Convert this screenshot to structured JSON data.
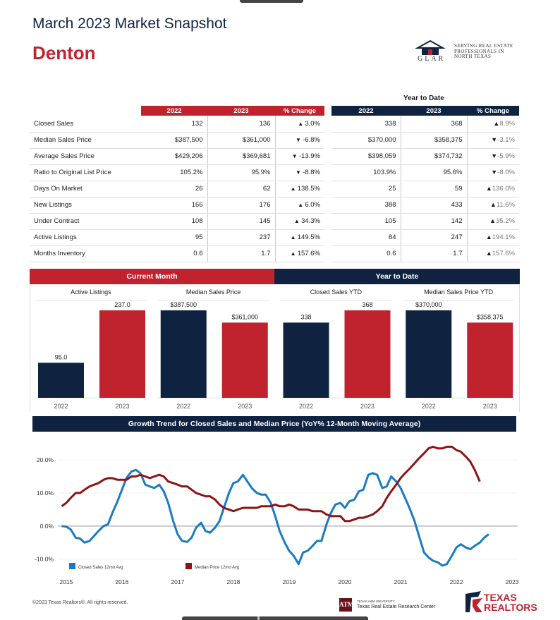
{
  "header": {
    "title": "March 2023 Market Snapshot",
    "city": "Denton",
    "glar": {
      "lines": [
        "Serving Real Estate",
        "Professionals in",
        "North Texas"
      ],
      "acronym": "GLAR",
      "colors": {
        "roof": "#0f2341",
        "accent": "#c0222e"
      }
    }
  },
  "table": {
    "ytd_heading": "Year to Date",
    "current_headers": [
      "2022",
      "2023",
      "% Change"
    ],
    "ytd_headers": [
      "2022",
      "2023",
      "% Change"
    ],
    "rows": [
      {
        "label": "Closed Sales",
        "c2022": "132",
        "c2023": "136",
        "cchg": "3.0%",
        "cdir": "up",
        "y2022": "338",
        "y2023": "368",
        "ychg": "8.9%",
        "ydir": "up"
      },
      {
        "label": "Median Sales Price",
        "c2022": "$387,500",
        "c2023": "$361,000",
        "cchg": "-6.8%",
        "cdir": "down",
        "y2022": "$370,000",
        "y2023": "$358,375",
        "ychg": "-3.1%",
        "ydir": "down"
      },
      {
        "label": "Average Sales Price",
        "c2022": "$429,206",
        "c2023": "$369,681",
        "cchg": "-13.9%",
        "cdir": "down",
        "y2022": "$398,059",
        "y2023": "$374,732",
        "ychg": "-5.9%",
        "ydir": "down"
      },
      {
        "label": "Ratio to Original List Price",
        "c2022": "105.2%",
        "c2023": "95.9%",
        "cchg": "-8.8%",
        "cdir": "down",
        "y2022": "103.9%",
        "y2023": "95.6%",
        "ychg": "-8.0%",
        "ydir": "down"
      },
      {
        "label": "Days On Market",
        "c2022": "26",
        "c2023": "62",
        "cchg": "138.5%",
        "cdir": "up",
        "y2022": "25",
        "y2023": "59",
        "ychg": "136.0%",
        "ydir": "up"
      },
      {
        "label": "New Listings",
        "c2022": "166",
        "c2023": "176",
        "cchg": "6.0%",
        "cdir": "up",
        "y2022": "388",
        "y2023": "433",
        "ychg": "11.6%",
        "ydir": "up"
      },
      {
        "label": "Under Contract",
        "c2022": "108",
        "c2023": "145",
        "cchg": "34.3%",
        "cdir": "up",
        "y2022": "105",
        "y2023": "142",
        "ychg": "35.2%",
        "ydir": "up"
      },
      {
        "label": "Active Listings",
        "c2022": "95",
        "c2023": "237",
        "cchg": "149.5%",
        "cdir": "up",
        "y2022": "84",
        "y2023": "247",
        "ychg": "194.1%",
        "ydir": "up"
      },
      {
        "label": "Months Inventory",
        "c2022": "0.6",
        "c2023": "1.7",
        "cchg": "157.6%",
        "cdir": "up",
        "y2022": "0.6",
        "y2023": "1.7",
        "ychg": "157.6%",
        "ydir": "up"
      }
    ],
    "colors": {
      "current": "#c0222e",
      "ytd": "#0f2341"
    }
  },
  "bands": {
    "current": "Current Month",
    "ytd": "Year to Date"
  },
  "chart_data": [
    {
      "type": "bar",
      "title": "Active Listings",
      "categories": [
        "2022",
        "2023"
      ],
      "values": [
        95.0,
        237.0
      ],
      "labels": [
        "95.0",
        "237.0"
      ],
      "colors": [
        "#0f2341",
        "#c0222e"
      ]
    },
    {
      "type": "bar",
      "title": "Median Sales Price",
      "categories": [
        "2022",
        "2023"
      ],
      "values": [
        387500,
        361000
      ],
      "labels": [
        "$387,500",
        "$361,000"
      ],
      "colors": [
        "#0f2341",
        "#c0222e"
      ]
    },
    {
      "type": "bar",
      "title": "Closed Sales YTD",
      "categories": [
        "2022",
        "2023"
      ],
      "values": [
        338,
        368
      ],
      "labels": [
        "338",
        "368"
      ],
      "colors": [
        "#0f2341",
        "#c0222e"
      ]
    },
    {
      "type": "bar",
      "title": "Median Sales Price YTD",
      "categories": [
        "2022",
        "2023"
      ],
      "values": [
        370000,
        358375
      ],
      "labels": [
        "$370,000",
        "$358,375"
      ],
      "colors": [
        "#0f2341",
        "#c0222e"
      ]
    },
    {
      "type": "line",
      "title": "Growth Trend for Closed Sales and Median Price (YoY% 12-Month Moving Average)",
      "xlim": [
        2014.85,
        2023.1
      ],
      "ylim": [
        -12,
        26
      ],
      "yticks": [
        20,
        10,
        0,
        -10
      ],
      "ytick_labels": [
        "20.0%",
        "10.0%",
        "0.0%",
        "-10.0%"
      ],
      "xticks": [
        "2015",
        "2016",
        "2017",
        "2018",
        "2019",
        "2020",
        "2021",
        "2022",
        "2023"
      ],
      "series": [
        {
          "name": "Closed Sales 12mo Avg",
          "color": "#1a7ac4",
          "points": [
            [
              2014.92,
              0.0
            ],
            [
              2015.0,
              -0.2
            ],
            [
              2015.08,
              -1.0
            ],
            [
              2015.17,
              -3.5
            ],
            [
              2015.25,
              -3.8
            ],
            [
              2015.33,
              -5.0
            ],
            [
              2015.42,
              -4.5
            ],
            [
              2015.5,
              -3.0
            ],
            [
              2015.58,
              -1.5
            ],
            [
              2015.67,
              0.0
            ],
            [
              2015.75,
              0.5
            ],
            [
              2015.83,
              4.0
            ],
            [
              2015.92,
              7.5
            ],
            [
              2016.0,
              11.0
            ],
            [
              2016.08,
              14.5
            ],
            [
              2016.17,
              16.5
            ],
            [
              2016.25,
              17.0
            ],
            [
              2016.33,
              16.0
            ],
            [
              2016.42,
              12.5
            ],
            [
              2016.5,
              12.0
            ],
            [
              2016.58,
              11.5
            ],
            [
              2016.67,
              12.5
            ],
            [
              2016.75,
              10.5
            ],
            [
              2016.83,
              7.0
            ],
            [
              2016.92,
              1.5
            ],
            [
              2017.0,
              -2.5
            ],
            [
              2017.08,
              -4.5
            ],
            [
              2017.17,
              -4.8
            ],
            [
              2017.25,
              -3.5
            ],
            [
              2017.33,
              -0.5
            ],
            [
              2017.42,
              1.0
            ],
            [
              2017.5,
              -1.5
            ],
            [
              2017.58,
              -2.0
            ],
            [
              2017.67,
              -0.5
            ],
            [
              2017.75,
              1.5
            ],
            [
              2017.83,
              5.5
            ],
            [
              2017.92,
              10.0
            ],
            [
              2018.0,
              13.0
            ],
            [
              2018.08,
              13.5
            ],
            [
              2018.17,
              15.5
            ],
            [
              2018.25,
              13.5
            ],
            [
              2018.33,
              11.5
            ],
            [
              2018.42,
              10.0
            ],
            [
              2018.5,
              9.5
            ],
            [
              2018.58,
              9.5
            ],
            [
              2018.67,
              7.0
            ],
            [
              2018.75,
              3.0
            ],
            [
              2018.83,
              -1.5
            ],
            [
              2018.92,
              -5.0
            ],
            [
              2019.0,
              -7.5
            ],
            [
              2019.08,
              -9.0
            ],
            [
              2019.17,
              -11.5
            ],
            [
              2019.25,
              -8.0
            ],
            [
              2019.33,
              -7.5
            ],
            [
              2019.42,
              -6.0
            ],
            [
              2019.5,
              -4.5
            ],
            [
              2019.58,
              -4.5
            ],
            [
              2019.67,
              0.5
            ],
            [
              2019.75,
              4.0
            ],
            [
              2019.83,
              6.5
            ],
            [
              2019.92,
              7.0
            ],
            [
              2020.0,
              5.5
            ],
            [
              2020.08,
              7.5
            ],
            [
              2020.17,
              8.0
            ],
            [
              2020.25,
              10.5
            ],
            [
              2020.33,
              11.0
            ],
            [
              2020.42,
              15.5
            ],
            [
              2020.5,
              16.0
            ],
            [
              2020.58,
              15.5
            ],
            [
              2020.67,
              11.5
            ],
            [
              2020.75,
              12.0
            ],
            [
              2020.83,
              15.0
            ],
            [
              2020.92,
              13.5
            ],
            [
              2021.0,
              11.5
            ],
            [
              2021.08,
              8.5
            ],
            [
              2021.17,
              5.0
            ],
            [
              2021.25,
              1.5
            ],
            [
              2021.33,
              -3.0
            ],
            [
              2021.42,
              -8.0
            ],
            [
              2021.5,
              -9.5
            ],
            [
              2021.58,
              -10.5
            ],
            [
              2021.67,
              -11.0
            ],
            [
              2021.75,
              -12.0
            ],
            [
              2021.83,
              -11.5
            ],
            [
              2021.92,
              -9.0
            ],
            [
              2022.0,
              -6.5
            ],
            [
              2022.08,
              -5.5
            ],
            [
              2022.17,
              -6.5
            ],
            [
              2022.25,
              -7.0
            ],
            [
              2022.33,
              -6.0
            ],
            [
              2022.42,
              -5.0
            ],
            [
              2022.5,
              -3.5
            ],
            [
              2022.58,
              -2.5
            ]
          ]
        },
        {
          "name": "Median Price 12mo Avg",
          "color": "#8b1416",
          "points": [
            [
              2014.92,
              6.0
            ],
            [
              2015.0,
              7.0
            ],
            [
              2015.08,
              8.5
            ],
            [
              2015.17,
              10.0
            ],
            [
              2015.25,
              10.0
            ],
            [
              2015.33,
              11.0
            ],
            [
              2015.42,
              12.0
            ],
            [
              2015.5,
              12.5
            ],
            [
              2015.58,
              13.0
            ],
            [
              2015.67,
              14.0
            ],
            [
              2015.75,
              14.5
            ],
            [
              2015.83,
              14.5
            ],
            [
              2015.92,
              14.0
            ],
            [
              2016.0,
              14.0
            ],
            [
              2016.08,
              14.0
            ],
            [
              2016.17,
              15.0
            ],
            [
              2016.25,
              15.0
            ],
            [
              2016.33,
              15.5
            ],
            [
              2016.42,
              15.0
            ],
            [
              2016.5,
              14.5
            ],
            [
              2016.58,
              15.0
            ],
            [
              2016.67,
              15.5
            ],
            [
              2016.75,
              15.0
            ],
            [
              2016.83,
              13.5
            ],
            [
              2016.92,
              13.0
            ],
            [
              2017.0,
              12.5
            ],
            [
              2017.08,
              12.0
            ],
            [
              2017.17,
              12.0
            ],
            [
              2017.25,
              11.0
            ],
            [
              2017.33,
              10.0
            ],
            [
              2017.42,
              9.5
            ],
            [
              2017.5,
              9.0
            ],
            [
              2017.58,
              9.0
            ],
            [
              2017.67,
              8.0
            ],
            [
              2017.75,
              6.5
            ],
            [
              2017.83,
              5.5
            ],
            [
              2017.92,
              5.0
            ],
            [
              2018.0,
              4.5
            ],
            [
              2018.08,
              5.0
            ],
            [
              2018.17,
              5.5
            ],
            [
              2018.25,
              5.5
            ],
            [
              2018.33,
              5.5
            ],
            [
              2018.42,
              5.5
            ],
            [
              2018.5,
              6.0
            ],
            [
              2018.58,
              6.0
            ],
            [
              2018.67,
              6.0
            ],
            [
              2018.75,
              6.5
            ],
            [
              2018.83,
              6.0
            ],
            [
              2018.92,
              6.0
            ],
            [
              2019.0,
              6.5
            ],
            [
              2019.08,
              6.0
            ],
            [
              2019.17,
              5.0
            ],
            [
              2019.25,
              5.0
            ],
            [
              2019.33,
              5.0
            ],
            [
              2019.42,
              4.5
            ],
            [
              2019.5,
              4.5
            ],
            [
              2019.58,
              4.5
            ],
            [
              2019.67,
              3.5
            ],
            [
              2019.75,
              3.0
            ],
            [
              2019.83,
              3.0
            ],
            [
              2019.92,
              3.0
            ],
            [
              2020.0,
              1.5
            ],
            [
              2020.08,
              1.5
            ],
            [
              2020.17,
              2.0
            ],
            [
              2020.25,
              2.5
            ],
            [
              2020.33,
              2.5
            ],
            [
              2020.42,
              3.0
            ],
            [
              2020.5,
              3.5
            ],
            [
              2020.58,
              4.5
            ],
            [
              2020.67,
              6.0
            ],
            [
              2020.75,
              8.5
            ],
            [
              2020.83,
              10.5
            ],
            [
              2020.92,
              12.5
            ],
            [
              2021.0,
              14.5
            ],
            [
              2021.08,
              16.0
            ],
            [
              2021.17,
              17.5
            ],
            [
              2021.25,
              19.0
            ],
            [
              2021.33,
              20.5
            ],
            [
              2021.42,
              22.0
            ],
            [
              2021.5,
              23.5
            ],
            [
              2021.58,
              24.0
            ],
            [
              2021.67,
              23.5
            ],
            [
              2021.75,
              23.5
            ],
            [
              2021.83,
              24.0
            ],
            [
              2021.92,
              24.0
            ],
            [
              2022.0,
              23.0
            ],
            [
              2022.08,
              22.5
            ],
            [
              2022.17,
              21.0
            ],
            [
              2022.25,
              19.5
            ],
            [
              2022.33,
              17.0
            ],
            [
              2022.42,
              13.5
            ]
          ]
        }
      ]
    }
  ],
  "footer": {
    "copyright": "©2023 Texas Realtors®. All rights reserved.",
    "tamu_logo": "ATM",
    "tamu_small": "TEXAS A&M UNIVERSITY",
    "tamu_name": "Texas Real Estate Research Center",
    "tr_line1": "TEXAS",
    "tr_line2": "REALTORS"
  }
}
